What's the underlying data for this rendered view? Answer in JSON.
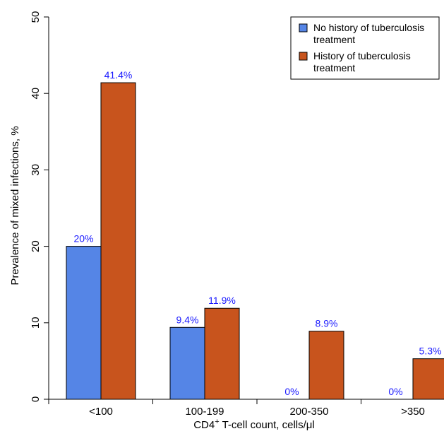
{
  "chart_data": {
    "type": "bar",
    "categories": [
      "<100",
      "100-199",
      "200-350",
      ">350"
    ],
    "series": [
      {
        "name": "No history of tuberculosis treatment",
        "name_lines": [
          "No history of tuberculosis",
          "treatment"
        ],
        "values": [
          20,
          9.4,
          0,
          0
        ],
        "labels": [
          "20%",
          "9.4%",
          "0%",
          "0%"
        ],
        "color": "#5585e6"
      },
      {
        "name": "History of tuberculosis treatment",
        "name_lines": [
          "History of tuberculosis",
          "treatment"
        ],
        "values": [
          41.4,
          11.9,
          8.9,
          5.3
        ],
        "labels": [
          "41.4%",
          "11.9%",
          "8.9%",
          "5.3%"
        ],
        "color": "#c8541d"
      }
    ],
    "ylabel": "Prevalence of mixed infections, %",
    "xlabel": {
      "prefix": "CD4",
      "superscript": "+",
      "suffix": " T-cell count, cells/μl"
    },
    "ylim": [
      0,
      50
    ],
    "yticks": [
      0,
      10,
      20,
      30,
      40,
      50
    ],
    "legend_position": "top-right",
    "grid": false,
    "data_label_color": "#1a1aff"
  }
}
